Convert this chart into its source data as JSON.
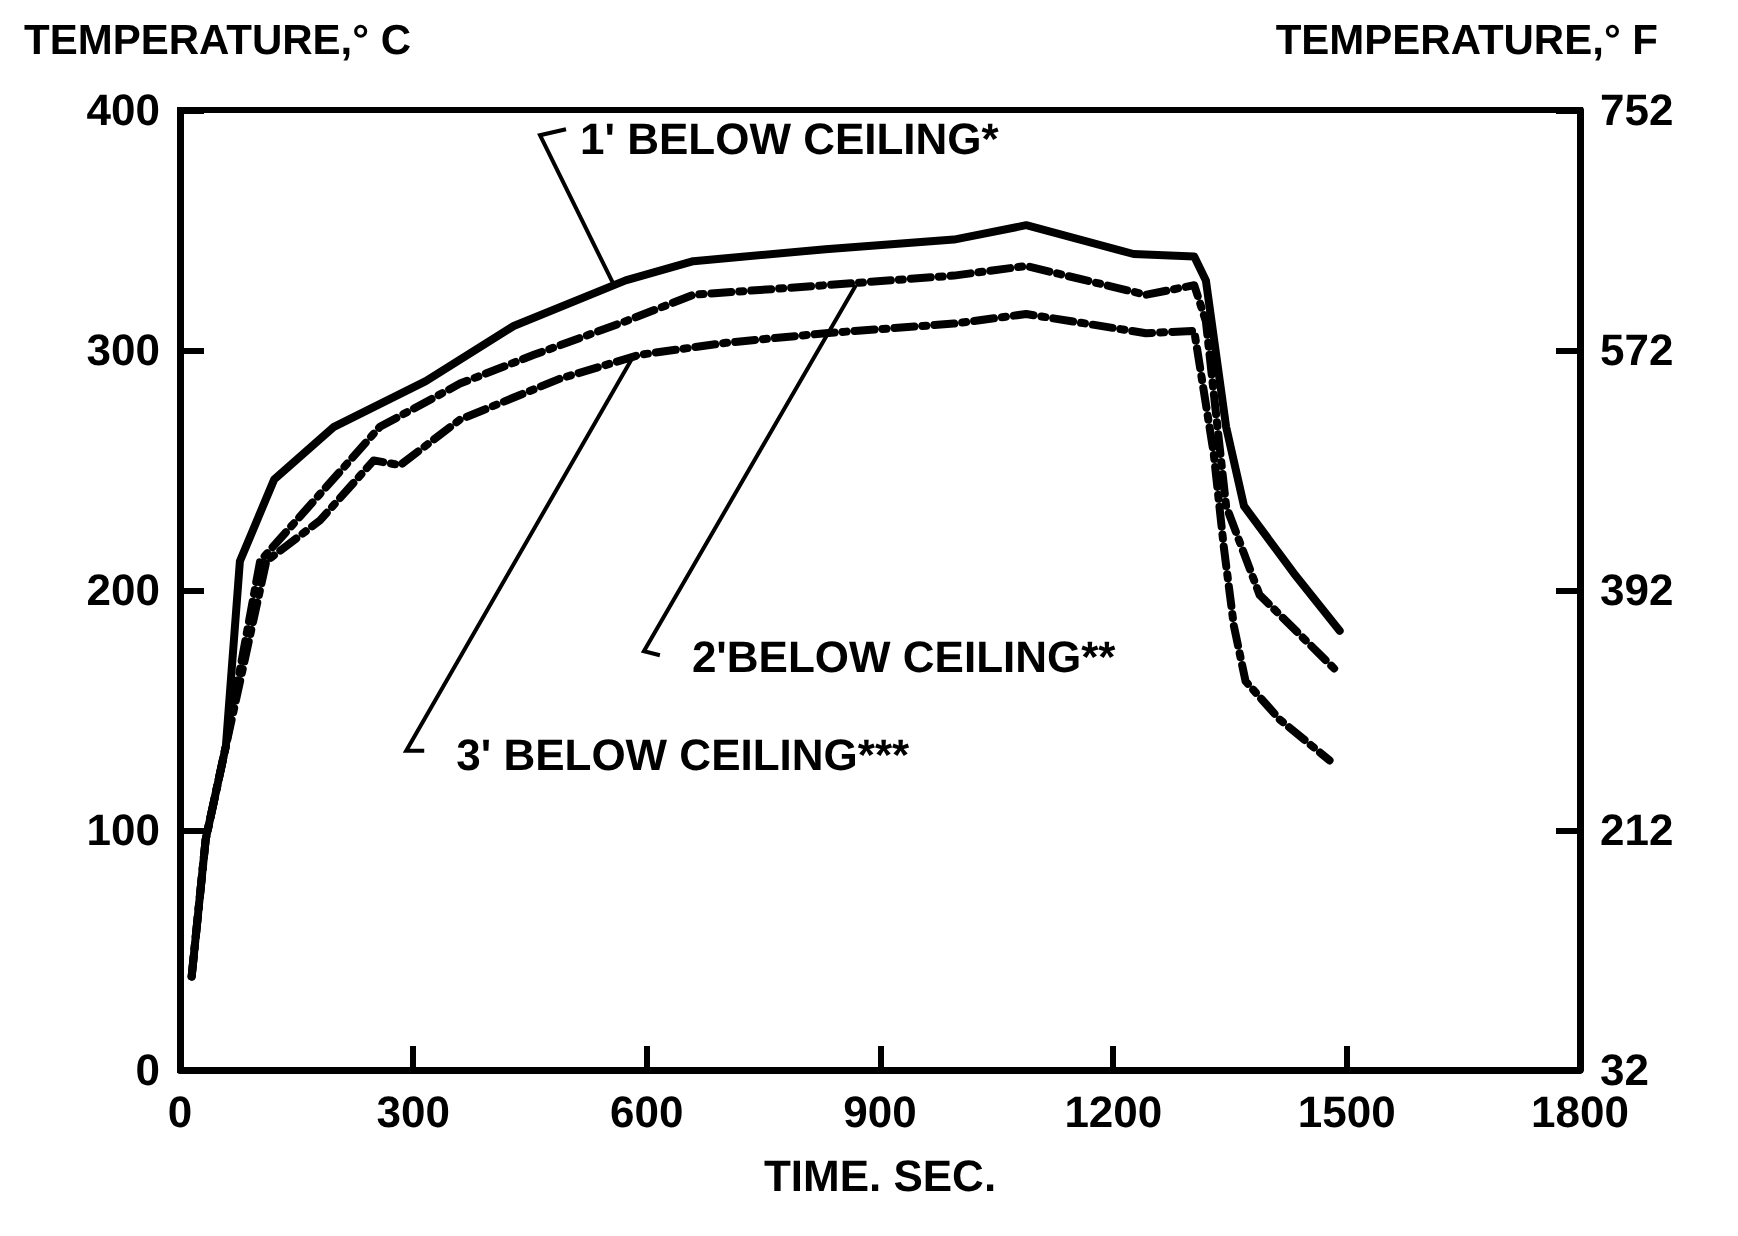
{
  "chart_data": {
    "type": "line",
    "ylabel": "TEMPERATURE,° C",
    "y2label": "TEMPERATURE,° F",
    "xlabel": "TIME. SEC.",
    "xlim": [
      0,
      1800
    ],
    "xticks": [
      0,
      300,
      600,
      900,
      1200,
      1500,
      1800
    ],
    "ylim": [
      0,
      400
    ],
    "yticks": [
      0,
      100,
      200,
      300,
      400
    ],
    "y2lim": [
      32,
      752
    ],
    "y2ticks": [
      32,
      212,
      392,
      572,
      752
    ],
    "marker": "none",
    "series": [
      {
        "color": "#000000",
        "line_style": "solid",
        "x": [
          15,
          33,
          59,
          77,
          121,
          198,
          316,
          429,
          573,
          660,
          830,
          995,
          1088,
          1226,
          1304,
          1319,
          1345,
          1368,
          1432,
          1491
        ],
        "values": [
          39,
          96,
          135,
          212,
          246,
          268,
          287,
          310,
          329,
          337,
          342,
          346,
          352,
          340,
          339,
          329,
          268,
          235,
          207,
          183
        ]
      },
      {
        "color": "#000000",
        "line_style": "dashed",
        "x": [
          15,
          33,
          59,
          103,
          180,
          257,
          360,
          455,
          573,
          660,
          830,
          995,
          1088,
          1242,
          1304,
          1319,
          1345,
          1388,
          1491
        ],
        "values": [
          39,
          96,
          135,
          212,
          240,
          268,
          286,
          298,
          312,
          323,
          327,
          331,
          335,
          323,
          327,
          312,
          235,
          198,
          165
        ]
      },
      {
        "color": "#000000",
        "line_style": "dashed",
        "x": [
          15,
          33,
          59,
          111,
          180,
          249,
          283,
          360,
          488,
          591,
          702,
          830,
          995,
          1088,
          1242,
          1304,
          1329,
          1342,
          1355,
          1370,
          1414,
          1478
        ],
        "values": [
          39,
          96,
          135,
          212,
          229,
          254,
          252,
          271,
          288,
          298,
          303,
          307,
          311,
          315,
          307,
          308,
          257,
          218,
          185,
          162,
          146,
          129
        ]
      }
    ],
    "annotations": [
      {
        "text": "1' BELOW CEILING*",
        "x": 558,
        "y": 327
      },
      {
        "text": "2'BELOW CEILING**",
        "x": 869,
        "y": 327
      },
      {
        "text": "3' BELOW CEILING***",
        "x": 584,
        "y": 298
      }
    ]
  }
}
